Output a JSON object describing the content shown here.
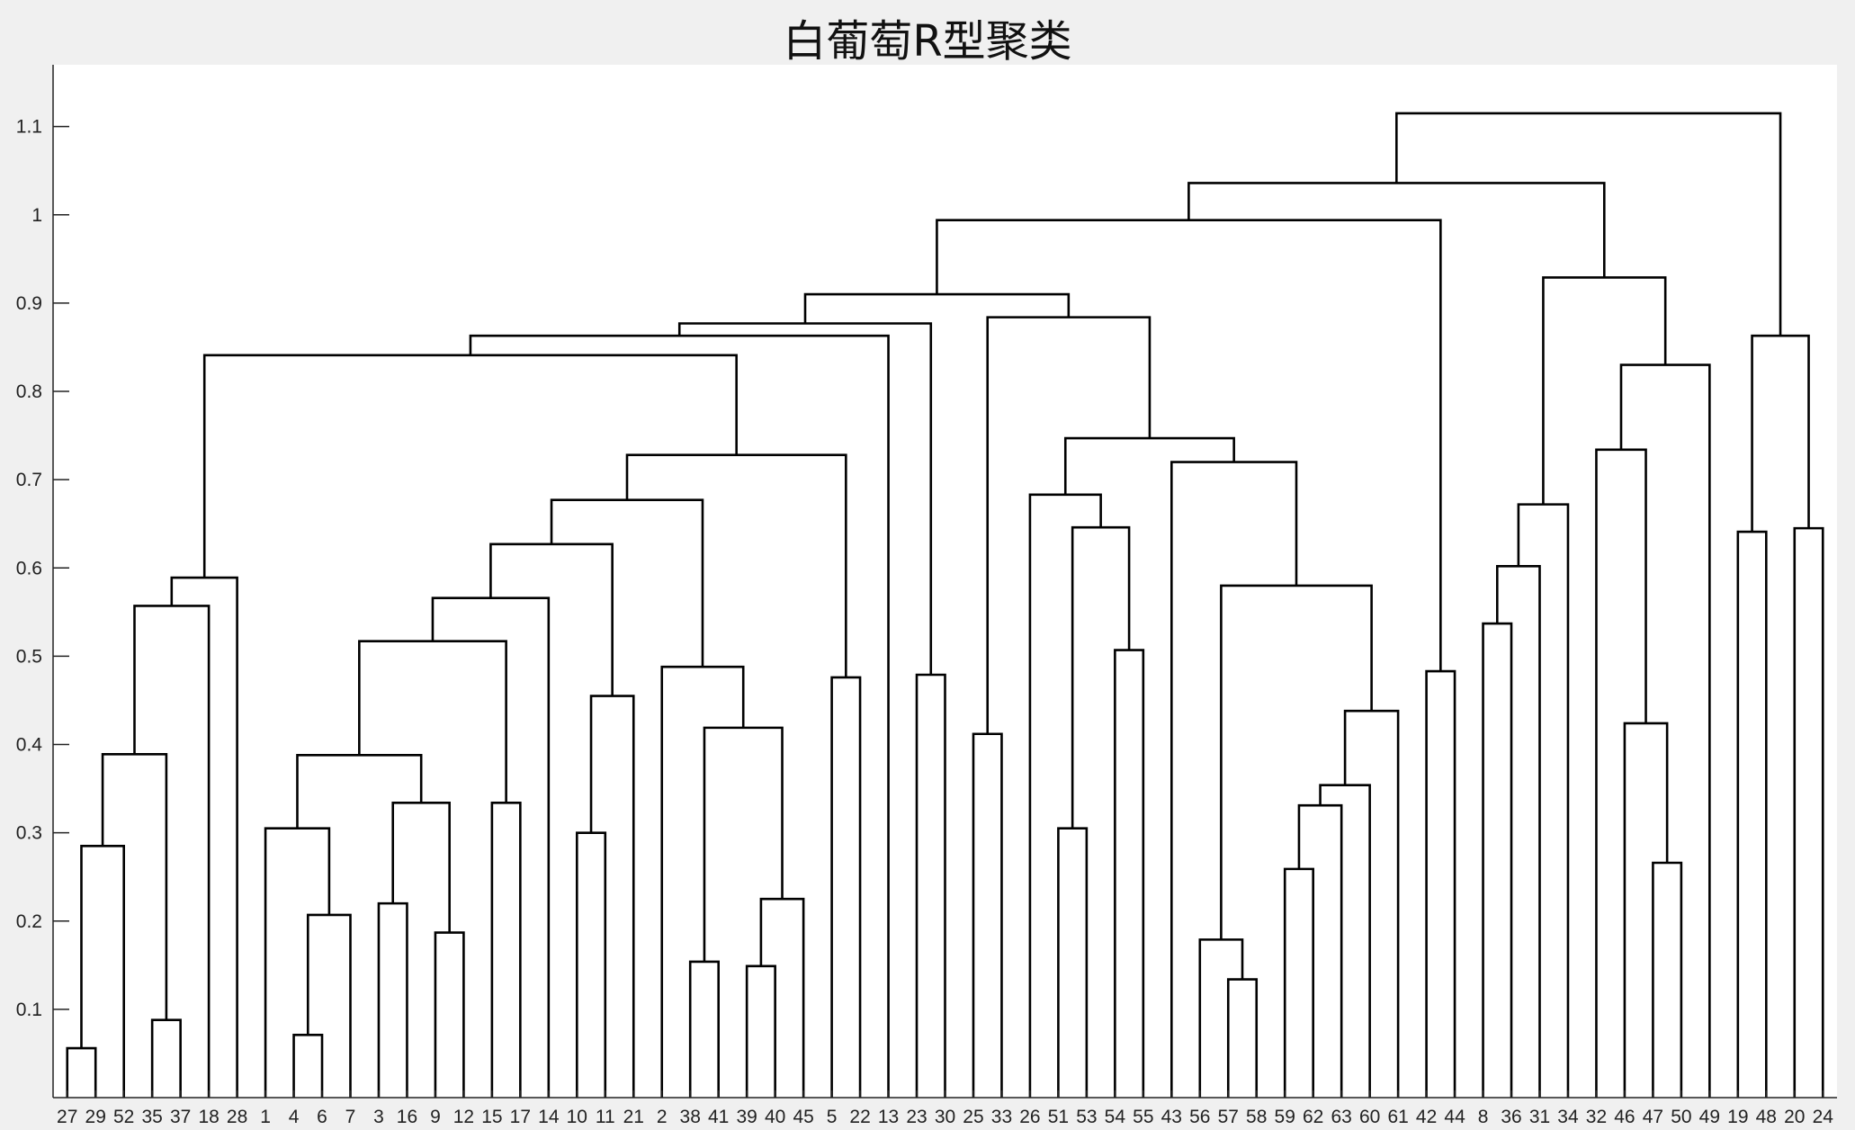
{
  "chart_data": {
    "type": "dendrogram",
    "title": "白葡萄R型聚类",
    "xlabel": "",
    "ylabel": "",
    "ylim": [
      0,
      1.17
    ],
    "yticks": [
      0.1,
      0.2,
      0.3,
      0.4,
      0.5,
      0.6,
      0.7,
      0.8,
      0.9,
      1,
      1.1
    ],
    "leaf_order": [
      "27",
      "29",
      "52",
      "35",
      "37",
      "18",
      "28",
      "1",
      "4",
      "6",
      "7",
      "3",
      "16",
      "9",
      "12",
      "15",
      "17",
      "14",
      "10",
      "11",
      "21",
      "2",
      "38",
      "41",
      "39",
      "40",
      "45",
      "5",
      "22",
      "13",
      "23",
      "30",
      "25",
      "33",
      "26",
      "51",
      "53",
      "54",
      "55",
      "43",
      "56",
      "57",
      "58",
      "59",
      "62",
      "63",
      "60",
      "61",
      "42",
      "44",
      "8",
      "36",
      "31",
      "34",
      "32",
      "46",
      "47",
      "50",
      "49",
      "19",
      "48",
      "20",
      "24"
    ],
    "links": [
      {
        "l": "27",
        "r": "29",
        "h": 0.056
      },
      {
        "l": "35",
        "r": "37",
        "h": 0.088
      },
      {
        "l": "4",
        "r": "6",
        "h": 0.071
      },
      {
        "l": "57",
        "r": "58",
        "h": 0.134
      },
      {
        "l": "39",
        "r": "40",
        "h": 0.149
      },
      {
        "l": "38",
        "r": "41",
        "h": 0.154
      },
      {
        "l": "56",
        "r": "*57",
        "h": 0.179
      },
      {
        "l": "9",
        "r": "12",
        "h": 0.187
      },
      {
        "l": "*4",
        "r": "7",
        "h": 0.207
      },
      {
        "l": "3",
        "r": "16",
        "h": 0.22
      },
      {
        "l": "*39",
        "r": "45",
        "h": 0.225
      },
      {
        "l": "59",
        "r": "62",
        "h": 0.259
      },
      {
        "l": "47",
        "r": "50",
        "h": 0.266
      },
      {
        "l": "*27",
        "r": "52",
        "h": 0.285
      },
      {
        "l": "10",
        "r": "11",
        "h": 0.3
      },
      {
        "l": "1",
        "r": "*4",
        "h": 0.305
      },
      {
        "l": "51",
        "r": "53",
        "h": 0.305
      },
      {
        "l": "*59",
        "r": "63",
        "h": 0.331
      },
      {
        "l": "15",
        "r": "17",
        "h": 0.334
      },
      {
        "l": "*3",
        "r": "*9",
        "h": 0.334
      },
      {
        "l": "*59",
        "r": "60",
        "h": 0.354
      },
      {
        "l": "*1",
        "r": "*3",
        "h": 0.388
      },
      {
        "l": "*27",
        "r": "*35",
        "h": 0.389
      },
      {
        "l": "25",
        "r": "33",
        "h": 0.412
      },
      {
        "l": "*38",
        "r": "*39",
        "h": 0.419
      },
      {
        "l": "46",
        "r": "*47",
        "h": 0.424
      },
      {
        "l": "*59",
        "r": "61",
        "h": 0.438
      },
      {
        "l": "*10",
        "r": "21",
        "h": 0.455
      },
      {
        "l": "5",
        "r": "22",
        "h": 0.476
      },
      {
        "l": "23",
        "r": "30",
        "h": 0.479
      },
      {
        "l": "42",
        "r": "44",
        "h": 0.483
      },
      {
        "l": "2",
        "r": "*38",
        "h": 0.488
      },
      {
        "l": "54",
        "r": "55",
        "h": 0.507
      },
      {
        "l": "*1",
        "r": "*15",
        "h": 0.517
      },
      {
        "l": "8",
        "r": "36",
        "h": 0.537
      },
      {
        "l": "*27",
        "r": "18",
        "h": 0.557
      },
      {
        "l": "*1",
        "r": "14",
        "h": 0.566
      },
      {
        "l": "*56",
        "r": "*59",
        "h": 0.58
      },
      {
        "l": "*27",
        "r": "28",
        "h": 0.589
      },
      {
        "l": "*8",
        "r": "31",
        "h": 0.602
      },
      {
        "l": "*1",
        "r": "*10",
        "h": 0.627
      },
      {
        "l": "19",
        "r": "48",
        "h": 0.641
      },
      {
        "l": "20",
        "r": "24",
        "h": 0.645
      },
      {
        "l": "*51",
        "r": "*54",
        "h": 0.646
      },
      {
        "l": "*8",
        "r": "34",
        "h": 0.672
      },
      {
        "l": "*1",
        "r": "*2",
        "h": 0.677
      },
      {
        "l": "26",
        "r": "*51",
        "h": 0.683
      },
      {
        "l": "43",
        "r": "*56",
        "h": 0.72
      },
      {
        "l": "*1",
        "r": "*5",
        "h": 0.728
      },
      {
        "l": "32",
        "r": "*46",
        "h": 0.734
      },
      {
        "l": "*26",
        "r": "*43",
        "h": 0.747
      },
      {
        "l": "*32",
        "r": "49",
        "h": 0.83
      },
      {
        "l": "*27",
        "r": "*1",
        "h": 0.841
      },
      {
        "l": "*27",
        "r": "13",
        "h": 0.863
      },
      {
        "l": "*19",
        "r": "*20",
        "h": 0.863
      },
      {
        "l": "*27",
        "r": "*23",
        "h": 0.877
      },
      {
        "l": "*25",
        "r": "*26",
        "h": 0.884
      },
      {
        "l": "*27",
        "r": "*25",
        "h": 0.91
      },
      {
        "l": "*8",
        "r": "*32",
        "h": 0.929
      },
      {
        "l": "*27",
        "r": "*42",
        "h": 0.994
      },
      {
        "l": "*27",
        "r": "*8",
        "h": 1.036
      },
      {
        "l": "*27",
        "r": "*19",
        "h": 1.115
      }
    ]
  }
}
